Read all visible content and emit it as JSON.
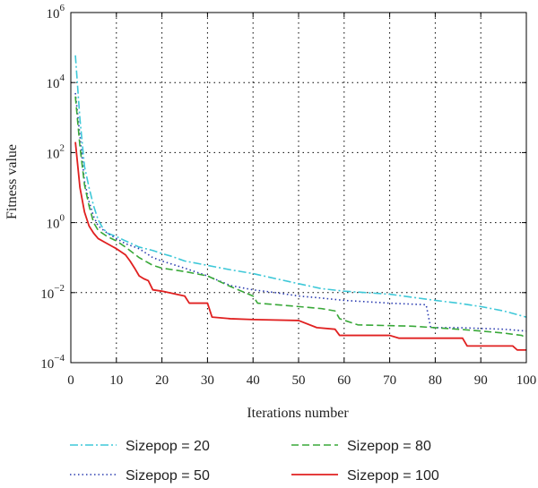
{
  "chart_data": {
    "type": "line",
    "xlabel": "Iterations number",
    "ylabel": "Fitness value",
    "xlim": [
      0,
      100
    ],
    "ylim_log10": [
      -4,
      6
    ],
    "yscale": "log",
    "xticks": [
      "0",
      "10",
      "20",
      "30",
      "40",
      "50",
      "60",
      "70",
      "80",
      "90",
      "100"
    ],
    "yticks": [
      {
        "base": "10",
        "exp": "−4",
        "log": -4
      },
      {
        "base": "10",
        "exp": "−2",
        "log": -2
      },
      {
        "base": "10",
        "exp": "0",
        "log": 0
      },
      {
        "base": "10",
        "exp": "2",
        "log": 2
      },
      {
        "base": "10",
        "exp": "4",
        "log": 4
      },
      {
        "base": "10",
        "exp": "6",
        "log": 6
      }
    ],
    "grid": true,
    "legend_position": "below",
    "series": [
      {
        "name": "Sizepop = 20",
        "color": "#3ec8d8",
        "dash": "dashdot",
        "points": [
          [
            1,
            60000
          ],
          [
            2,
            900
          ],
          [
            3,
            40
          ],
          [
            4,
            10
          ],
          [
            5,
            3
          ],
          [
            6,
            1.2
          ],
          [
            7,
            0.7
          ],
          [
            8,
            0.5
          ],
          [
            10,
            0.4
          ],
          [
            12,
            0.3
          ],
          [
            15,
            0.2
          ],
          [
            18,
            0.16
          ],
          [
            20,
            0.13
          ],
          [
            22,
            0.11
          ],
          [
            25,
            0.08
          ],
          [
            30,
            0.06
          ],
          [
            35,
            0.045
          ],
          [
            40,
            0.035
          ],
          [
            45,
            0.025
          ],
          [
            50,
            0.018
          ],
          [
            55,
            0.013
          ],
          [
            60,
            0.011
          ],
          [
            70,
            0.009
          ],
          [
            80,
            0.006
          ],
          [
            85,
            0.005
          ],
          [
            90,
            0.004
          ],
          [
            95,
            0.003
          ],
          [
            100,
            0.002
          ]
        ]
      },
      {
        "name": "Sizepop = 50",
        "color": "#2a3bb0",
        "dash": "dotted",
        "points": [
          [
            1,
            5000
          ],
          [
            2,
            300
          ],
          [
            3,
            15
          ],
          [
            4,
            4
          ],
          [
            5,
            1.5
          ],
          [
            6,
            0.8
          ],
          [
            8,
            0.5
          ],
          [
            10,
            0.35
          ],
          [
            12,
            0.25
          ],
          [
            15,
            0.18
          ],
          [
            18,
            0.1
          ],
          [
            20,
            0.08
          ],
          [
            25,
            0.05
          ],
          [
            30,
            0.03
          ],
          [
            35,
            0.016
          ],
          [
            40,
            0.012
          ],
          [
            45,
            0.01
          ],
          [
            50,
            0.008
          ],
          [
            55,
            0.007
          ],
          [
            60,
            0.006
          ],
          [
            70,
            0.005
          ],
          [
            78,
            0.0045
          ],
          [
            79,
            0.001
          ],
          [
            85,
            0.001
          ],
          [
            95,
            0.0009
          ],
          [
            100,
            0.0008
          ]
        ]
      },
      {
        "name": "Sizepop = 80",
        "color": "#38a838",
        "dash": "dashed",
        "points": [
          [
            1,
            4000
          ],
          [
            2,
            150
          ],
          [
            3,
            12
          ],
          [
            4,
            3
          ],
          [
            5,
            1
          ],
          [
            6,
            0.6
          ],
          [
            8,
            0.4
          ],
          [
            10,
            0.3
          ],
          [
            12,
            0.2
          ],
          [
            15,
            0.1
          ],
          [
            18,
            0.06
          ],
          [
            20,
            0.05
          ],
          [
            25,
            0.04
          ],
          [
            30,
            0.03
          ],
          [
            35,
            0.015
          ],
          [
            40,
            0.008
          ],
          [
            41,
            0.005
          ],
          [
            50,
            0.004
          ],
          [
            55,
            0.0035
          ],
          [
            58,
            0.003
          ],
          [
            59,
            0.0018
          ],
          [
            63,
            0.0012
          ],
          [
            75,
            0.0011
          ],
          [
            85,
            0.0009
          ],
          [
            90,
            0.0008
          ],
          [
            95,
            0.0007
          ],
          [
            99,
            0.0006
          ],
          [
            100,
            0.0005
          ]
        ]
      },
      {
        "name": "Sizepop = 100",
        "color": "#e02020",
        "dash": "solid",
        "points": [
          [
            1,
            200
          ],
          [
            2,
            10
          ],
          [
            3,
            2
          ],
          [
            4,
            0.8
          ],
          [
            5,
            0.5
          ],
          [
            6,
            0.35
          ],
          [
            8,
            0.25
          ],
          [
            10,
            0.18
          ],
          [
            12,
            0.12
          ],
          [
            13,
            0.08
          ],
          [
            14,
            0.05
          ],
          [
            15,
            0.03
          ],
          [
            16,
            0.025
          ],
          [
            17,
            0.022
          ],
          [
            18,
            0.012
          ],
          [
            20,
            0.011
          ],
          [
            25,
            0.008
          ],
          [
            26,
            0.005
          ],
          [
            30,
            0.005
          ],
          [
            31,
            0.002
          ],
          [
            35,
            0.0018
          ],
          [
            40,
            0.0017
          ],
          [
            50,
            0.0016
          ],
          [
            54,
            0.001
          ],
          [
            58,
            0.0009
          ],
          [
            59,
            0.0006
          ],
          [
            70,
            0.0006
          ],
          [
            72,
            0.0005
          ],
          [
            86,
            0.0005
          ],
          [
            87,
            0.0003
          ],
          [
            97,
            0.0003
          ],
          [
            98,
            0.00023
          ],
          [
            100,
            0.00023
          ]
        ]
      }
    ]
  }
}
